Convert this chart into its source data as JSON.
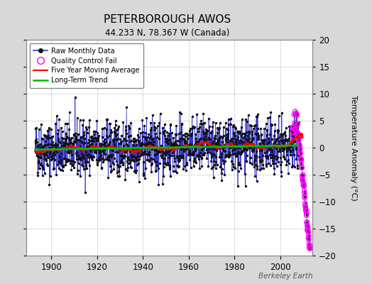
{
  "title": "PETERBOROUGH AWOS",
  "subtitle": "44.233 N, 78.367 W (Canada)",
  "ylabel": "Temperature Anomaly (°C)",
  "credit": "Berkeley Earth",
  "year_start": 1893,
  "year_end": 2012,
  "ylim": [
    -20,
    20
  ],
  "yticks": [
    -20,
    -15,
    -10,
    -5,
    0,
    5,
    10,
    15,
    20
  ],
  "xticks": [
    1900,
    1920,
    1940,
    1960,
    1980,
    2000
  ],
  "xlim_start": 1889,
  "xlim_end": 2014,
  "background_color": "#d8d8d8",
  "plot_bg_color": "#ffffff",
  "grid_color": "#bbbbbb",
  "raw_line_color": "#3333cc",
  "raw_marker_color": "#111111",
  "qc_fail_color": "#ff00ff",
  "moving_avg_color": "#ff0000",
  "trend_color": "#00bb00",
  "noise_std": 2.5,
  "seed": 42,
  "qc_start_year": 2005,
  "qc_dramatic_start": 2008
}
